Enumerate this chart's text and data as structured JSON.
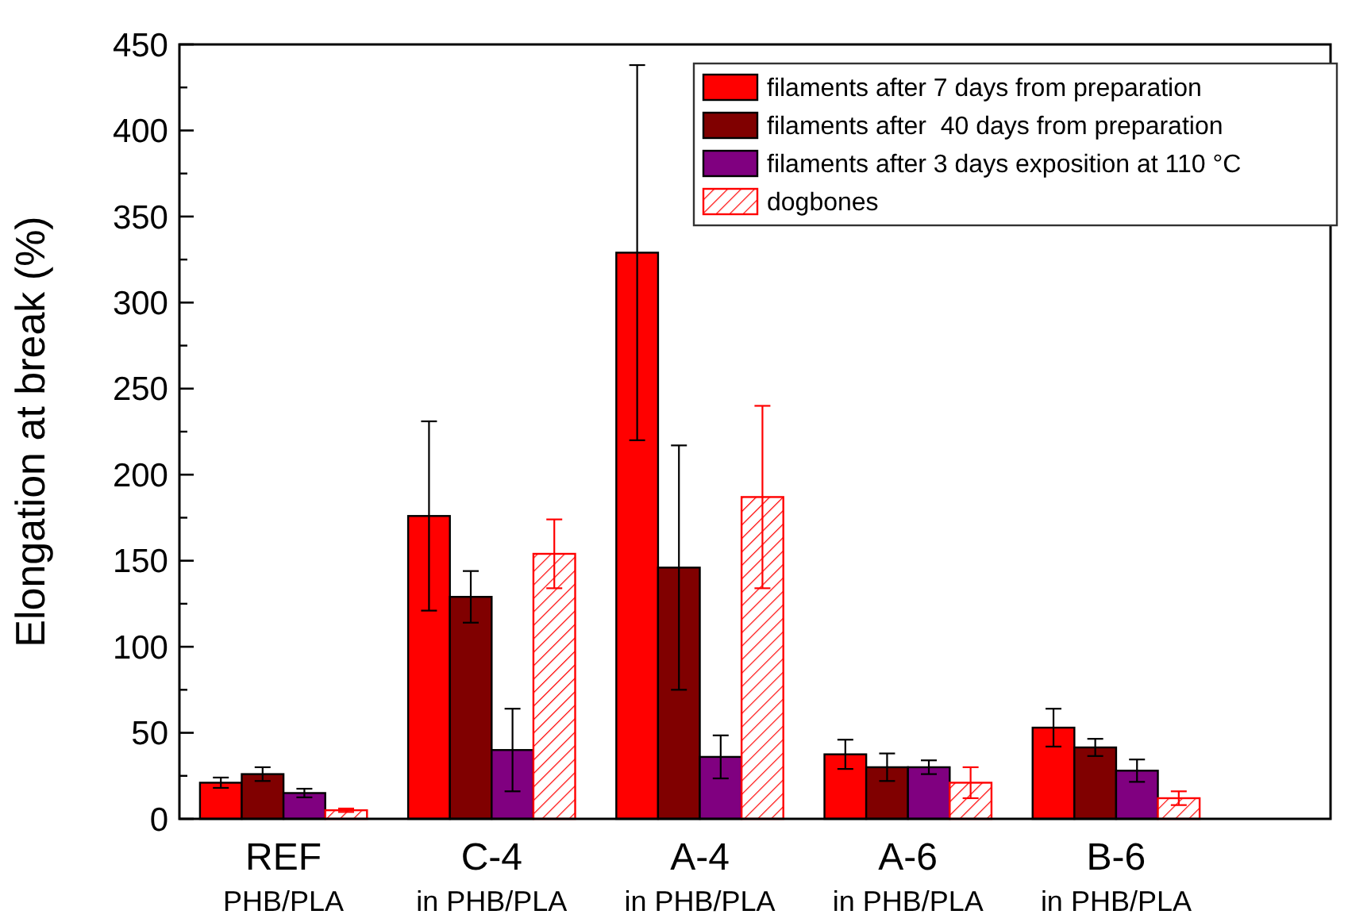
{
  "chart_data": {
    "type": "bar",
    "ylabel": "Elongation at break (%)",
    "categories": [
      "REF\nPHB/PLA",
      "C-4\nin PHB/PLA",
      "A-4\nin PHB/PLA",
      "A-6\nin PHB/PLA",
      "B-6\nin PHB/PLA"
    ],
    "series": [
      {
        "name": "filaments after 7 days from preparation",
        "color": "#ff0000",
        "values": [
          21,
          176,
          329,
          37.5,
          53
        ],
        "errors": [
          3,
          55,
          109,
          8.5,
          11
        ]
      },
      {
        "name": "filaments after  40 days from preparation",
        "color": "#800000",
        "values": [
          26,
          129,
          146,
          30,
          41.5
        ],
        "errors": [
          4,
          15,
          71,
          8,
          5
        ]
      },
      {
        "name": "filaments after 3 days exposition at 110 °C",
        "color": "#800080",
        "values": [
          15,
          40,
          36,
          30,
          28
        ],
        "errors": [
          2.5,
          24,
          12.5,
          4,
          6.5
        ]
      },
      {
        "name": "dogbones",
        "color": "#ff0000",
        "values": [
          5,
          154,
          187,
          21,
          12
        ],
        "errors": [
          1,
          20,
          53,
          9,
          4
        ]
      }
    ],
    "ylim": [
      0,
      450
    ],
    "yticks": [
      0,
      50,
      100,
      150,
      200,
      250,
      300,
      350,
      400,
      450
    ],
    "grid": false,
    "legend": "top right"
  }
}
